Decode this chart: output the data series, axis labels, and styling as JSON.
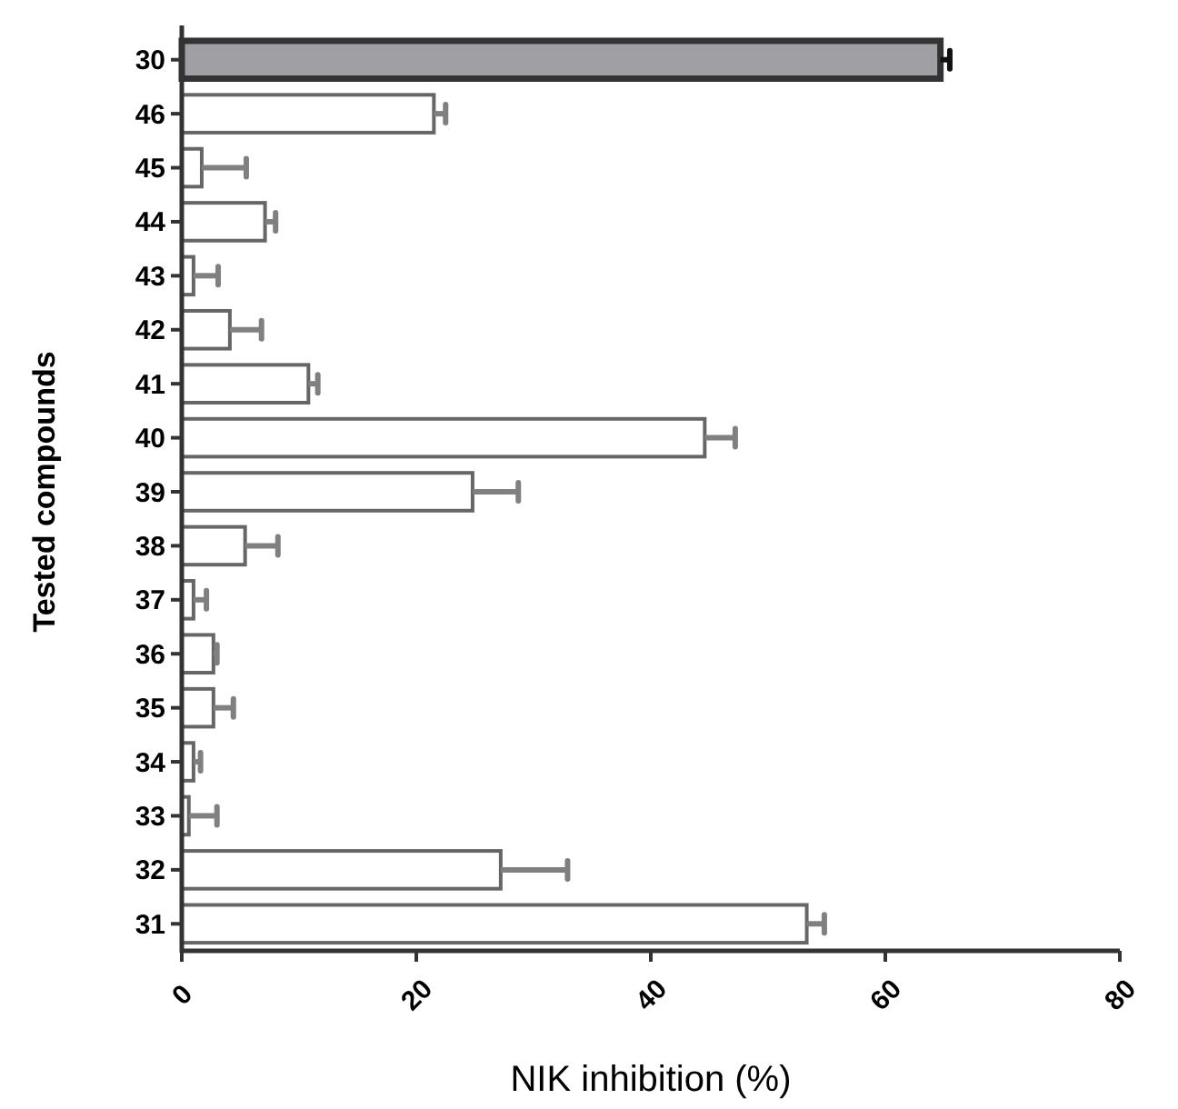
{
  "chart_data": {
    "type": "bar",
    "orientation": "horizontal",
    "xlabel": "NIK inhibition (%)",
    "ylabel": "Tested compounds",
    "categories": [
      "30",
      "46",
      "45",
      "44",
      "43",
      "42",
      "41",
      "40",
      "39",
      "38",
      "37",
      "36",
      "35",
      "34",
      "33",
      "32",
      "31"
    ],
    "values": [
      64.7,
      21.5,
      1.7,
      7.1,
      1.0,
      4.1,
      10.8,
      44.6,
      24.8,
      5.4,
      1.0,
      2.7,
      2.7,
      1.0,
      0.6,
      27.2,
      53.3
    ],
    "errors": [
      0.8,
      1.0,
      3.8,
      0.9,
      2.1,
      2.7,
      0.8,
      2.6,
      3.9,
      2.8,
      1.1,
      0.3,
      1.7,
      0.6,
      2.4,
      5.7,
      1.5
    ],
    "colors": [
      "#a09fa4",
      "#ffffff",
      "#ffffff",
      "#ffffff",
      "#ffffff",
      "#ffffff",
      "#ffffff",
      "#ffffff",
      "#ffffff",
      "#ffffff",
      "#ffffff",
      "#ffffff",
      "#ffffff",
      "#ffffff",
      "#ffffff",
      "#ffffff",
      "#ffffff"
    ],
    "xlim": [
      0,
      80
    ],
    "xticks": [
      0,
      20,
      40,
      60,
      80
    ]
  }
}
